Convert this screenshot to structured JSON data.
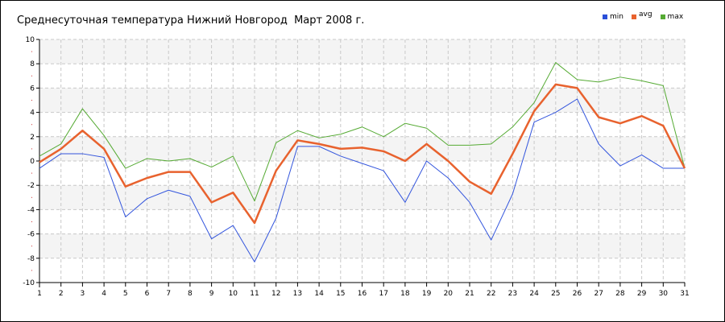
{
  "chart_data": {
    "type": "line",
    "title": "Среднесуточная температура Нижний Новгород  Март 2008 г.",
    "x": [
      1,
      2,
      3,
      4,
      5,
      6,
      7,
      8,
      9,
      10,
      11,
      12,
      13,
      14,
      15,
      16,
      17,
      18,
      19,
      20,
      21,
      22,
      23,
      24,
      25,
      26,
      27,
      28,
      29,
      30,
      31
    ],
    "ylim": [
      -10,
      10
    ],
    "yticks": [
      10,
      8,
      6,
      4,
      2,
      0,
      -2,
      -4,
      -6,
      -8,
      -10
    ],
    "grid": true,
    "legend_position": "top-right",
    "series": [
      {
        "name": "min",
        "color": "#3355dd",
        "width": 1,
        "values": [
          -0.6,
          0.6,
          0.6,
          0.3,
          -4.6,
          -3.1,
          -2.4,
          -2.9,
          -6.4,
          -5.3,
          -8.3,
          -4.7,
          1.2,
          1.2,
          0.4,
          -0.2,
          -0.8,
          -3.4,
          0.0,
          -1.4,
          -3.4,
          -6.5,
          -2.7,
          3.2,
          4.0,
          5.1,
          1.4,
          -0.4,
          0.5,
          -0.6,
          -0.6
        ]
      },
      {
        "name": "avg",
        "color": "#e8622e",
        "width": 2.5,
        "values": [
          -0.1,
          1.0,
          2.5,
          1.0,
          -2.1,
          -1.4,
          -0.9,
          -0.9,
          -3.4,
          -2.6,
          -5.1,
          -0.8,
          1.7,
          1.4,
          1.0,
          1.1,
          0.8,
          0.0,
          1.4,
          0.0,
          -1.7,
          -2.7,
          0.6,
          4.1,
          6.3,
          6.0,
          3.6,
          3.1,
          3.7,
          2.9,
          -0.6
        ]
      },
      {
        "name": "max",
        "color": "#55aa33",
        "width": 1,
        "values": [
          0.4,
          1.4,
          4.3,
          2.1,
          -0.6,
          0.2,
          0.0,
          0.2,
          -0.5,
          0.4,
          -3.3,
          1.5,
          2.5,
          1.9,
          2.2,
          2.8,
          2.0,
          3.1,
          2.7,
          1.3,
          1.3,
          1.4,
          2.8,
          4.8,
          8.1,
          6.7,
          6.5,
          6.9,
          6.6,
          6.2,
          -0.6
        ]
      }
    ]
  }
}
